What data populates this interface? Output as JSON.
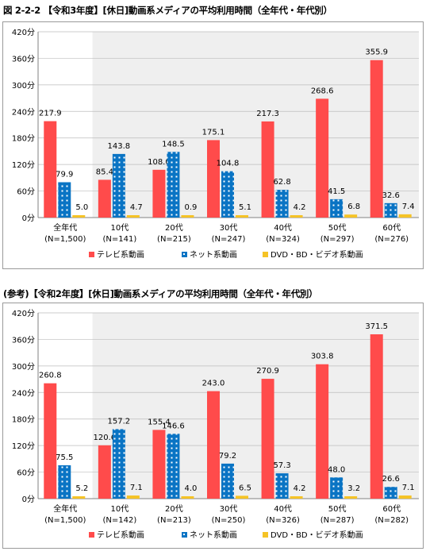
{
  "charts": [
    {
      "title": "図 2-2-2 【令和3年度】[休日]動画系メディアの平均利用時間（全年代・年代別）",
      "chart_data": {
        "type": "bar",
        "ylim": [
          0,
          420
        ],
        "yticks": [
          "0分",
          "60分",
          "120分",
          "180分",
          "240分",
          "300分",
          "360分",
          "420分"
        ],
        "categories": [
          "全年代",
          "10代",
          "20代",
          "30代",
          "40代",
          "50代",
          "60代"
        ],
        "n_labels": [
          "(N=1,500)",
          "(N=141)",
          "(N=215)",
          "(N=247)",
          "(N=324)",
          "(N=297)",
          "(N=276)"
        ],
        "series": [
          {
            "name": "テレビ系動画",
            "values": [
              217.9,
              85.4,
              108.0,
              175.1,
              217.3,
              268.6,
              355.9
            ],
            "labels": [
              "217.9",
              "85.4",
              "108.0",
              "175.1",
              "217.3",
              "268.6",
              "355.9"
            ]
          },
          {
            "name": "ネット系動画",
            "values": [
              79.9,
              143.8,
              148.5,
              104.8,
              62.8,
              41.5,
              32.6
            ],
            "labels": [
              "79.9",
              "143.8",
              "148.5",
              "104.8",
              "62.8",
              "41.5",
              "32.6"
            ]
          },
          {
            "name": "DVD・BD・ビデオ系動画",
            "values": [
              5.0,
              4.7,
              0.9,
              5.1,
              4.2,
              6.8,
              7.4
            ],
            "labels": [
              "5.0",
              "4.7",
              "0.9",
              "5.1",
              "4.2",
              "6.8",
              "7.4"
            ]
          }
        ],
        "legend_position": "bottom"
      }
    },
    {
      "title": "(参考)【令和2年度】[休日]動画系メディアの平均利用時間（全年代・年代別）",
      "chart_data": {
        "type": "bar",
        "ylim": [
          0,
          420
        ],
        "yticks": [
          "0分",
          "60分",
          "120分",
          "180分",
          "240分",
          "300分",
          "360分",
          "420分"
        ],
        "categories": [
          "全年代",
          "10代",
          "20代",
          "30代",
          "40代",
          "50代",
          "60代"
        ],
        "n_labels": [
          "(N=1,500)",
          "(N=142)",
          "(N=213)",
          "(N=250)",
          "(N=326)",
          "(N=287)",
          "(N=282)"
        ],
        "series": [
          {
            "name": "テレビ系動画",
            "values": [
              260.8,
              120.6,
              155.4,
              243.0,
              270.9,
              303.8,
              371.5
            ],
            "labels": [
              "260.8",
              "120.6",
              "155.4",
              "243.0",
              "270.9",
              "303.8",
              "371.5"
            ]
          },
          {
            "name": "ネット系動画",
            "values": [
              75.5,
              157.2,
              146.6,
              79.2,
              57.3,
              48.0,
              26.6
            ],
            "labels": [
              "75.5",
              "157.2",
              "146.6",
              "79.2",
              "57.3",
              "48.0",
              "26.6"
            ]
          },
          {
            "name": "DVD・BD・ビデオ系動画",
            "values": [
              5.2,
              7.1,
              4.0,
              6.5,
              4.2,
              3.2,
              7.1
            ],
            "labels": [
              "5.2",
              "7.1",
              "4.0",
              "6.5",
              "4.2",
              "3.2",
              "7.1"
            ]
          }
        ],
        "legend_position": "bottom"
      }
    }
  ],
  "colors": {
    "tv": "#ff4b4b",
    "net": "#0a74c4",
    "dvd": "#f5c326",
    "shade": "#efefef",
    "grid": "#bdbdbd"
  }
}
